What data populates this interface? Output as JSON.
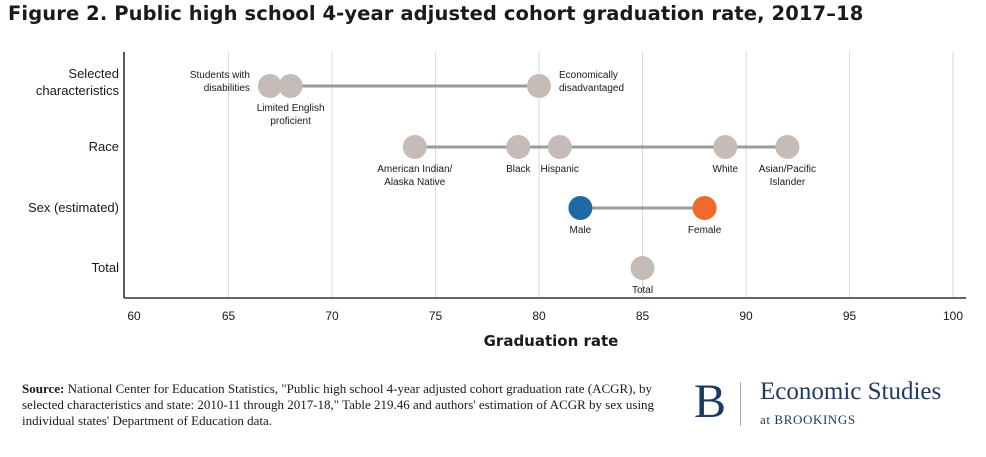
{
  "title": "Figure 2. Public high school 4-year adjusted cohort graduation rate, 2017–18",
  "chart_data": {
    "type": "dot-range",
    "xlabel": "Graduation rate",
    "xlim": [
      60,
      100
    ],
    "xticks": [
      "60",
      "65",
      "70",
      "75",
      "80",
      "85",
      "90",
      "95",
      "100"
    ],
    "grid": "vertical",
    "categories": [
      {
        "label": [
          "Selected",
          "characteristics"
        ],
        "range": [
          67,
          80
        ],
        "points": [
          {
            "label": [
              "Students with",
              "disabilities"
            ],
            "value": 67,
            "color": "#c5bcb8",
            "label_pos": "upper-left"
          },
          {
            "label": [
              "Limited English",
              "proficient"
            ],
            "value": 68,
            "color": "#c5bcb8",
            "label_pos": "below"
          },
          {
            "label": [
              "Economically",
              "disadvantaged"
            ],
            "value": 80,
            "color": "#c5bcb8",
            "label_pos": "upper-right"
          }
        ]
      },
      {
        "label": [
          "Race"
        ],
        "range": [
          74,
          92
        ],
        "points": [
          {
            "label": [
              "American Indian/",
              "Alaska Native"
            ],
            "value": 74,
            "color": "#c5bcb8",
            "label_pos": "below"
          },
          {
            "label": [
              "Black"
            ],
            "value": 79,
            "color": "#c5bcb8",
            "label_pos": "below"
          },
          {
            "label": [
              "Hispanic"
            ],
            "value": 81,
            "color": "#c5bcb8",
            "label_pos": "below"
          },
          {
            "label": [
              "White"
            ],
            "value": 89,
            "color": "#c5bcb8",
            "label_pos": "below"
          },
          {
            "label": [
              "Asian/Pacific",
              "Islander"
            ],
            "value": 92,
            "color": "#c5bcb8",
            "label_pos": "below"
          }
        ]
      },
      {
        "label": [
          "Sex (estimated)"
        ],
        "range": [
          82,
          88
        ],
        "points": [
          {
            "label": [
              "Male"
            ],
            "value": 82,
            "color": "#1f6aa5",
            "label_pos": "below"
          },
          {
            "label": [
              "Female"
            ],
            "value": 88,
            "color": "#f26a2a",
            "label_pos": "below"
          }
        ]
      },
      {
        "label": [
          "Total"
        ],
        "range": null,
        "points": [
          {
            "label": [
              "Total"
            ],
            "value": 85,
            "color": "#c5bcb8",
            "label_pos": "below"
          }
        ]
      }
    ]
  },
  "source": {
    "label": "Source:",
    "text": "National Center for Education Statistics, \"Public high school 4-year adjusted cohort graduation rate (ACGR), by selected characteristics and state: 2010-11 through 2017-18,\" Table 219.46 and authors' estimation of ACGR by sex using individual states' Department of Education data."
  },
  "brand": {
    "logo": "B",
    "name": "Economic Studies",
    "sub": "at BROOKINGS",
    "color": "#1f3a5f"
  },
  "colors": {
    "point_gray": "#c5bcb8",
    "male_blue": "#1f6aa5",
    "female_orange": "#f26a2a",
    "connector": "#9b9b9b",
    "grid": "#d9d9d9",
    "axis": "#333333"
  }
}
